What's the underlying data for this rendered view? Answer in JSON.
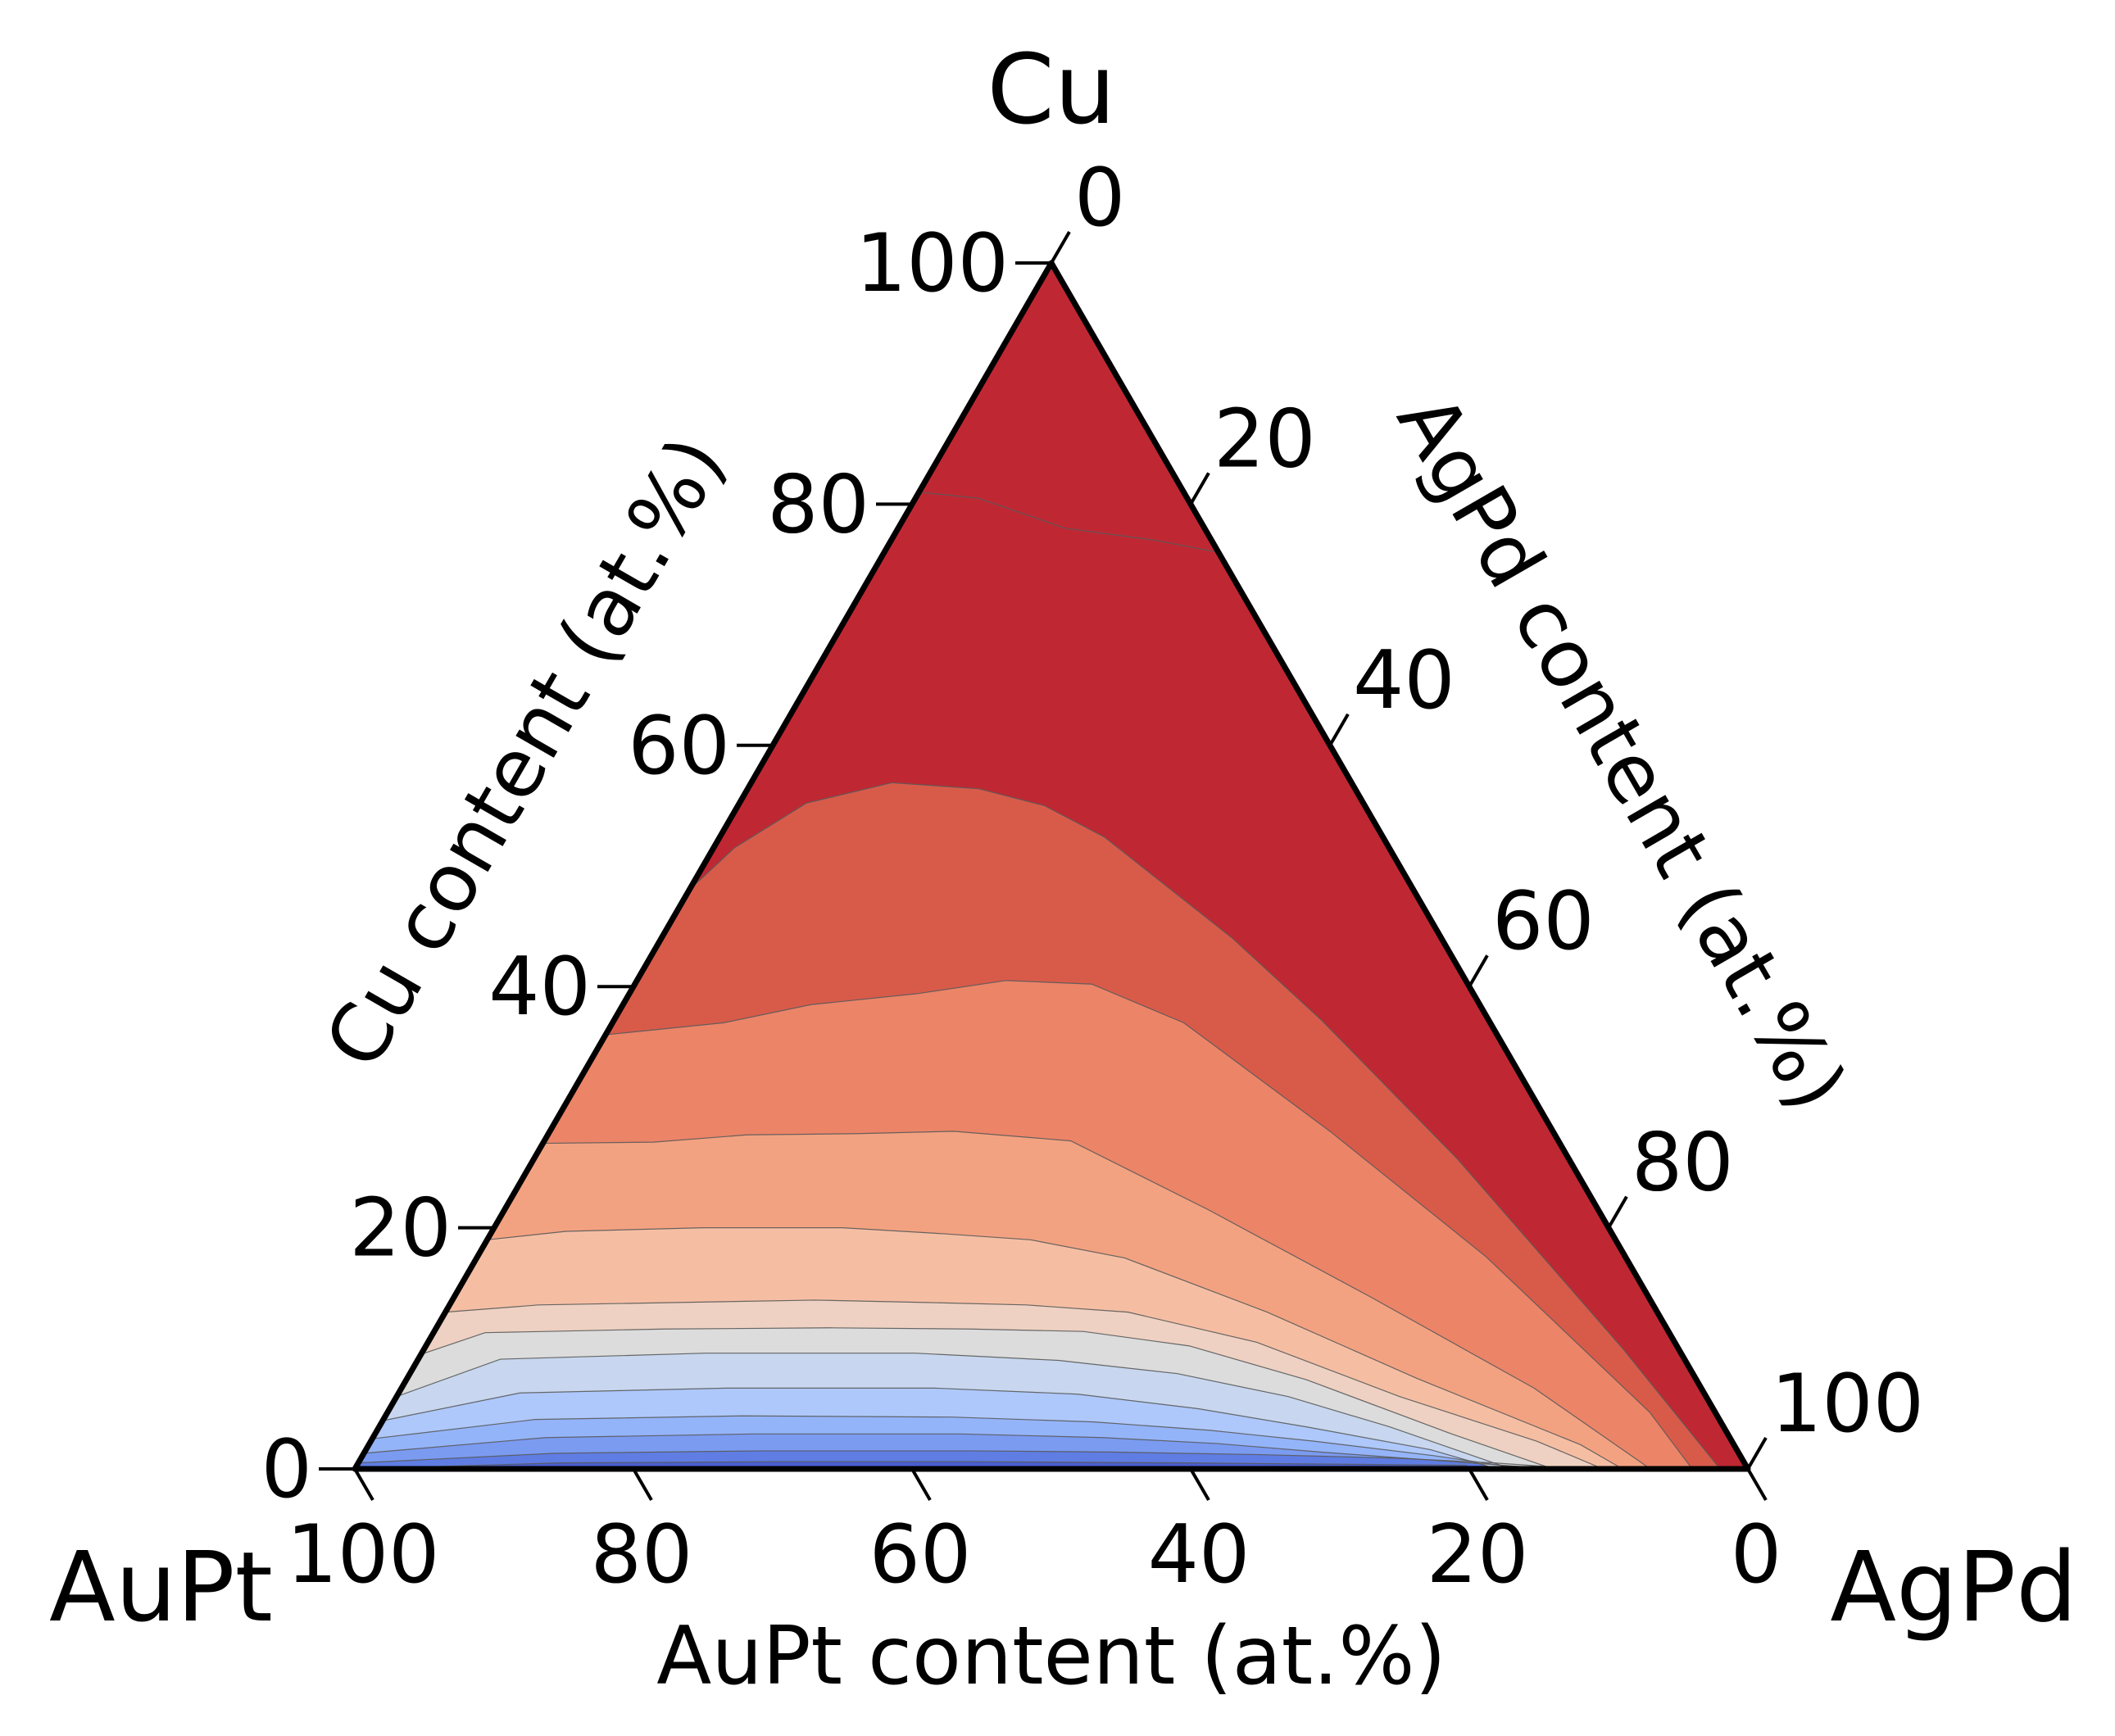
{
  "chart_data": {
    "type": "ternary-contour",
    "vertices": {
      "top": "Cu",
      "left": "AuPt",
      "right": "AgPd"
    },
    "axes": {
      "cu": {
        "title": "Cu content (at.%)",
        "ticks": [
          0,
          20,
          40,
          60,
          80,
          100
        ],
        "tick_labels": [
          "0",
          "20",
          "40",
          "60",
          "80",
          "100"
        ]
      },
      "agpd": {
        "title": "AgPd content (at.%)",
        "ticks": [
          0,
          20,
          40,
          60,
          80,
          100
        ],
        "tick_labels": [
          "0",
          "20",
          "40",
          "60",
          "80",
          "100"
        ]
      },
      "aupt": {
        "title": "AuPt content (at.%)",
        "ticks": [
          100,
          80,
          60,
          40,
          20,
          0
        ],
        "tick_labels": [
          "100",
          "80",
          "60",
          "40",
          "20",
          "0"
        ]
      }
    },
    "colormap": "coolwarm",
    "level_colors": [
      "#4a5fcf",
      "#5f7de3",
      "#7b9bf1",
      "#94b4fa",
      "#aec8fb",
      "#c8d7ef",
      "#dcdcdc",
      "#eed1c2",
      "#f5bea3",
      "#f3a281",
      "#ec8468",
      "#d85b4a",
      "#bf2833"
    ],
    "contour_levels": [
      {
        "points": [
          [
            100,
            0
          ],
          [
            85,
            0.5
          ],
          [
            70,
            0.6
          ],
          [
            55,
            0.6
          ],
          [
            40,
            0.5
          ],
          [
            30,
            0.4
          ],
          [
            20,
            0.3
          ]
        ]
      },
      {
        "points": [
          [
            99.5,
            0.5
          ],
          [
            85,
            1.3
          ],
          [
            70,
            1.5
          ],
          [
            55,
            1.5
          ],
          [
            45,
            1.4
          ],
          [
            35,
            1.2
          ],
          [
            25,
            0.9
          ],
          [
            18,
            0.5
          ],
          [
            12,
            0
          ]
        ]
      },
      {
        "points": [
          [
            98.7,
            1.3
          ],
          [
            85,
            2.6
          ],
          [
            70,
            2.9
          ],
          [
            55,
            2.9
          ],
          [
            45,
            2.6
          ],
          [
            37,
            2.1
          ],
          [
            30,
            1.4
          ],
          [
            22,
            0.7
          ],
          [
            14,
            0
          ]
        ]
      },
      {
        "points": [
          [
            97.5,
            2.5
          ],
          [
            85,
            4.1
          ],
          [
            70,
            4.4
          ],
          [
            55,
            4.3
          ],
          [
            45,
            3.9
          ],
          [
            37,
            3.2
          ],
          [
            30,
            2.3
          ],
          [
            22,
            1.1
          ],
          [
            16,
            0
          ]
        ]
      },
      {
        "points": [
          [
            96,
            4
          ],
          [
            85,
            6.3
          ],
          [
            70,
            6.7
          ],
          [
            55,
            6.7
          ],
          [
            45,
            6.2
          ],
          [
            37,
            5.0
          ],
          [
            30,
            3.5
          ],
          [
            22,
            1.6
          ],
          [
            18,
            0
          ]
        ]
      },
      {
        "points": [
          [
            94,
            6
          ],
          [
            85,
            9.1
          ],
          [
            70,
            9.6
          ],
          [
            55,
            9.6
          ],
          [
            45,
            9.0
          ],
          [
            37,
            7.9
          ],
          [
            30,
            6.0
          ],
          [
            24,
            3.5
          ],
          [
            17,
            0
          ]
        ]
      },
      {
        "points": [
          [
            90.5,
            9.5
          ],
          [
            85,
            11.3
          ],
          [
            72,
            11.6
          ],
          [
            60,
            11.7
          ],
          [
            50,
            11.6
          ],
          [
            42,
            11.4
          ],
          [
            35,
            10.2
          ],
          [
            28,
            7.4
          ],
          [
            20,
            3.0
          ],
          [
            14,
            0
          ]
        ]
      },
      {
        "points": [
          [
            87,
            13
          ],
          [
            80,
            13.6
          ],
          [
            70,
            13.8
          ],
          [
            60,
            14.0
          ],
          [
            52,
            13.8
          ],
          [
            45,
            13.6
          ],
          [
            38,
            13.0
          ],
          [
            30,
            10.5
          ],
          [
            22,
            6.0
          ],
          [
            14,
            2.3
          ],
          [
            10.4,
            0
          ]
        ]
      },
      {
        "points": [
          [
            81,
            19
          ],
          [
            75,
            19.7
          ],
          [
            65,
            20.0
          ],
          [
            55,
            20.0
          ],
          [
            48,
            19.5
          ],
          [
            42,
            19.0
          ],
          [
            36,
            17.5
          ],
          [
            28,
            13.0
          ],
          [
            20,
            7.5
          ],
          [
            11,
            2.0
          ],
          [
            9,
            0
          ]
        ]
      },
      {
        "points": [
          [
            73,
            27
          ],
          [
            65,
            27.1
          ],
          [
            58,
            27.7
          ],
          [
            50,
            27.8
          ],
          [
            43,
            28.0
          ],
          [
            35,
            27.2
          ],
          [
            28,
            21.5
          ],
          [
            20,
            14.3
          ],
          [
            12,
            6.7
          ],
          [
            7,
            0
          ]
        ]
      },
      {
        "points": [
          [
            64,
            36
          ],
          [
            55,
            37.0
          ],
          [
            48,
            38.5
          ],
          [
            40,
            39.4
          ],
          [
            33,
            40.5
          ],
          [
            27,
            40.2
          ],
          [
            22,
            37.0
          ],
          [
            16,
            28.0
          ],
          [
            10,
            17.6
          ],
          [
            4.7,
            4.7
          ],
          [
            4,
            0
          ]
        ]
      },
      {
        "points": [
          [
            52,
            48
          ],
          [
            47,
            51.5
          ],
          [
            40,
            55.2
          ],
          [
            33,
            56.9
          ],
          [
            27,
            56.4
          ],
          [
            23,
            55.0
          ],
          [
            20,
            52.4
          ],
          [
            15,
            44.0
          ],
          [
            12,
            37.2
          ],
          [
            8,
            25.7
          ],
          [
            4,
            10.0
          ],
          [
            2,
            0
          ]
        ]
      },
      {
        "points": [
          [
            19,
            81
          ],
          [
            15,
            80.5
          ],
          [
            10,
            78.0
          ],
          [
            4,
            77.0
          ],
          [
            0,
            76.0
          ]
        ]
      }
    ]
  }
}
